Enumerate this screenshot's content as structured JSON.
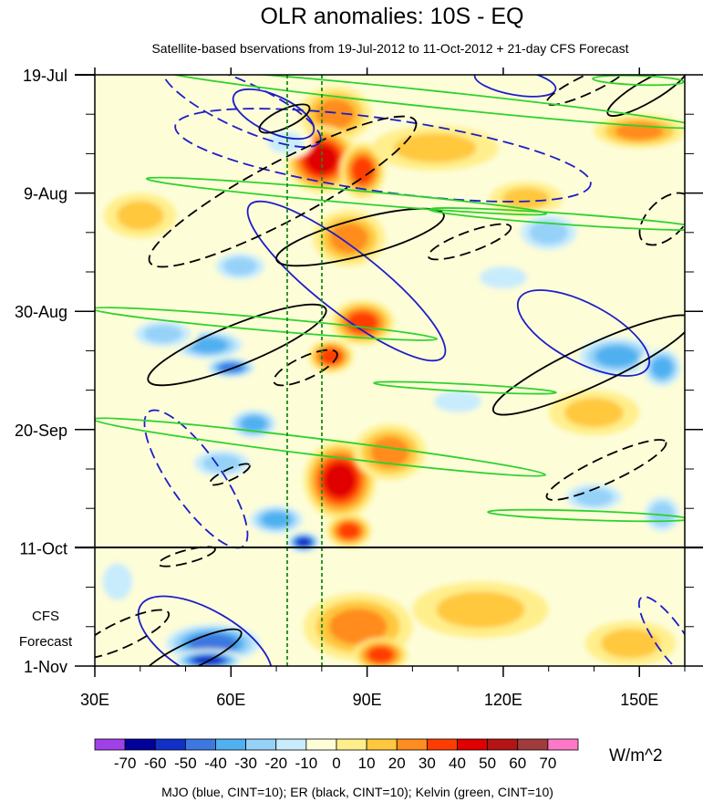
{
  "chart_data": {
    "type": "heatmap",
    "title": "OLR anomalies: 10S - EQ",
    "subtitle": "Satellite-based bservations from 19-Jul-2012 to 11-Oct-2012 + 21-day CFS Forecast",
    "units": "W/m^2",
    "x_axis": {
      "min": 30,
      "max": 160,
      "ticks": [
        30,
        60,
        90,
        120,
        150
      ],
      "tick_labels": [
        "30E",
        "60E",
        "90E",
        "120E",
        "150E"
      ]
    },
    "y_axis": {
      "start": "19-Jul",
      "end": "1-Nov",
      "total_days": 105,
      "ticks": [
        0,
        21,
        42,
        63,
        84,
        105
      ],
      "tick_labels": [
        "19-Jul",
        "9-Aug",
        "30-Aug",
        "20-Sep",
        "11-Oct",
        "1-Nov"
      ],
      "minor_every_days": 7
    },
    "observation_end_day": 84,
    "forecast_label_lines": [
      "CFS",
      "Forecast"
    ],
    "reference_longitudes": [
      72.5,
      80
    ],
    "colorbar": {
      "levels": [
        -70,
        -60,
        -50,
        -40,
        -30,
        -20,
        -10,
        0,
        10,
        20,
        30,
        40,
        50,
        60,
        70
      ],
      "level_labels": [
        "-70",
        "-60",
        "-50",
        "-40",
        "-30",
        "-20",
        "-10",
        "0",
        "10",
        "20",
        "30",
        "40",
        "50",
        "60",
        "70"
      ],
      "colors": [
        "#a040e8",
        "#00009a",
        "#1030c8",
        "#3c78e0",
        "#50b0f0",
        "#96d2f8",
        "#c8ecfc",
        "#fdfdd8",
        "#ffef8c",
        "#ffc83c",
        "#ff8c1e",
        "#ff3c00",
        "#e00000",
        "#b41414",
        "#a03c3c",
        "#ff78c8"
      ]
    },
    "contours": {
      "mjo": {
        "color": "#1e1ec8",
        "style": "solid=positive, dashed=negative"
      },
      "er": {
        "color": "#000000",
        "style": "solid=positive, dashed=negative"
      },
      "kelvin": {
        "color": "#2dd22d"
      }
    },
    "footer": "MJO (blue, CINT=10); ER (black, CINT=10); Kelvin (green, CINT=10)",
    "anomaly_features": [
      {
        "lon": 83,
        "day": 7,
        "value": 30,
        "rx": 8,
        "ry": 5
      },
      {
        "lon": 80,
        "day": 15,
        "value": 50,
        "rx": 8,
        "ry": 6
      },
      {
        "lon": 89,
        "day": 17,
        "value": 40,
        "rx": 5,
        "ry": 5
      },
      {
        "lon": 105,
        "day": 13,
        "value": 20,
        "rx": 14,
        "ry": 4
      },
      {
        "lon": 150,
        "day": 10,
        "value": 25,
        "rx": 10,
        "ry": 3
      },
      {
        "lon": 125,
        "day": 22,
        "value": 20,
        "rx": 8,
        "ry": 3
      },
      {
        "lon": 86,
        "day": 29,
        "value": 30,
        "rx": 8,
        "ry": 5
      },
      {
        "lon": 89,
        "day": 44,
        "value": 40,
        "rx": 7,
        "ry": 4
      },
      {
        "lon": 82,
        "day": 50,
        "value": 40,
        "rx": 5,
        "ry": 3
      },
      {
        "lon": 84,
        "day": 72,
        "value": 50,
        "rx": 8,
        "ry": 7
      },
      {
        "lon": 86,
        "day": 81,
        "value": 40,
        "rx": 5,
        "ry": 3
      },
      {
        "lon": 95,
        "day": 67,
        "value": 30,
        "rx": 8,
        "ry": 5
      },
      {
        "lon": 88,
        "day": 98,
        "value": 30,
        "rx": 12,
        "ry": 6
      },
      {
        "lon": 93,
        "day": 103,
        "value": 35,
        "rx": 6,
        "ry": 3
      },
      {
        "lon": 115,
        "day": 95,
        "value": 20,
        "rx": 15,
        "ry": 5
      },
      {
        "lon": 140,
        "day": 60,
        "value": 20,
        "rx": 10,
        "ry": 4
      },
      {
        "lon": 148,
        "day": 101,
        "value": 15,
        "rx": 10,
        "ry": 4
      },
      {
        "lon": 40,
        "day": 25,
        "value": 15,
        "rx": 8,
        "ry": 4
      },
      {
        "lon": 72,
        "day": 12,
        "value": -20,
        "rx": 6,
        "ry": 3
      },
      {
        "lon": 62,
        "day": 34,
        "value": -30,
        "rx": 7,
        "ry": 3
      },
      {
        "lon": 55,
        "day": 48,
        "value": -40,
        "rx": 9,
        "ry": 3
      },
      {
        "lon": 60,
        "day": 52,
        "value": -50,
        "rx": 6,
        "ry": 2
      },
      {
        "lon": 45,
        "day": 46,
        "value": -30,
        "rx": 8,
        "ry": 3
      },
      {
        "lon": 65,
        "day": 62,
        "value": -40,
        "rx": 6,
        "ry": 3
      },
      {
        "lon": 58,
        "day": 69,
        "value": -30,
        "rx": 8,
        "ry": 3
      },
      {
        "lon": 70,
        "day": 79,
        "value": -40,
        "rx": 7,
        "ry": 3
      },
      {
        "lon": 76,
        "day": 83,
        "value": -60,
        "rx": 4,
        "ry": 2
      },
      {
        "lon": 56,
        "day": 101,
        "value": -50,
        "rx": 12,
        "ry": 4
      },
      {
        "lon": 55,
        "day": 104,
        "value": -60,
        "rx": 8,
        "ry": 2
      },
      {
        "lon": 146,
        "day": 48,
        "value": -60,
        "rx": 5,
        "ry": 2
      },
      {
        "lon": 145,
        "day": 50,
        "value": -40,
        "rx": 10,
        "ry": 4
      },
      {
        "lon": 155,
        "day": 52,
        "value": -40,
        "rx": 5,
        "ry": 4
      },
      {
        "lon": 130,
        "day": 28,
        "value": -30,
        "rx": 8,
        "ry": 4
      },
      {
        "lon": 120,
        "day": 36,
        "value": -20,
        "rx": 8,
        "ry": 3
      },
      {
        "lon": 140,
        "day": 75,
        "value": -30,
        "rx": 8,
        "ry": 3
      },
      {
        "lon": 155,
        "day": 78,
        "value": -30,
        "rx": 5,
        "ry": 4
      },
      {
        "lon": 110,
        "day": 58,
        "value": -20,
        "rx": 8,
        "ry": 3
      },
      {
        "lon": 35,
        "day": 90,
        "value": -20,
        "rx": 5,
        "ry": 5
      }
    ]
  }
}
